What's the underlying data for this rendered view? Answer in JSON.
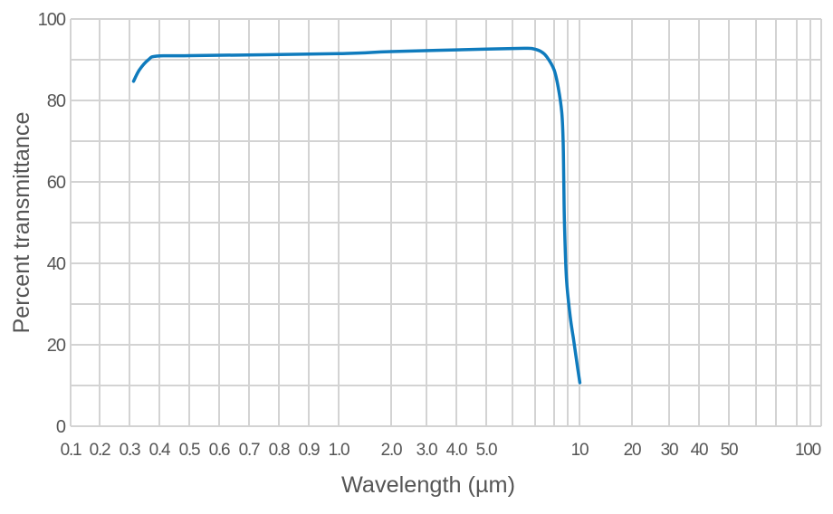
{
  "chart_data": {
    "type": "line",
    "title": "",
    "xlabel": "Wavelength (µm)",
    "ylabel": "Percent transmittance",
    "xscale": "custom-log-like",
    "xlim": [
      0.1,
      100
    ],
    "ylim": [
      0,
      100
    ],
    "grid": true,
    "legend": "none",
    "line_color": "#0f7bbd",
    "grid_color": "#d3d3d3",
    "x_tick_labels": [
      "0.1",
      "0.2",
      "0.3",
      "0.4",
      "0.5",
      "0.6",
      "0.7",
      "0.8",
      "0.9",
      "1.0",
      "2.0",
      "3.0",
      "4.0",
      "5.0",
      "10",
      "20",
      "30",
      "40",
      "50",
      "100"
    ],
    "y_tick_labels": [
      "0",
      "20",
      "40",
      "60",
      "80",
      "100"
    ],
    "series": [
      {
        "x": [
          0.312,
          0.33,
          0.36,
          0.39,
          0.5,
          1.0,
          2.0,
          5.0,
          6.5,
          6.9,
          7.3,
          7.6,
          8.0,
          8.3,
          8.55,
          8.65,
          8.7,
          8.75,
          8.9,
          9.2,
          9.5,
          9.8,
          10.05
        ],
        "y": [
          84.7,
          87.5,
          90.0,
          90.9,
          91.0,
          91.5,
          92.0,
          92.6,
          92.8,
          92.7,
          92.0,
          90.7,
          87.5,
          83.0,
          77.0,
          70.0,
          60.0,
          50.0,
          36.4,
          27.0,
          21.0,
          15.0,
          10.7
        ]
      }
    ]
  }
}
